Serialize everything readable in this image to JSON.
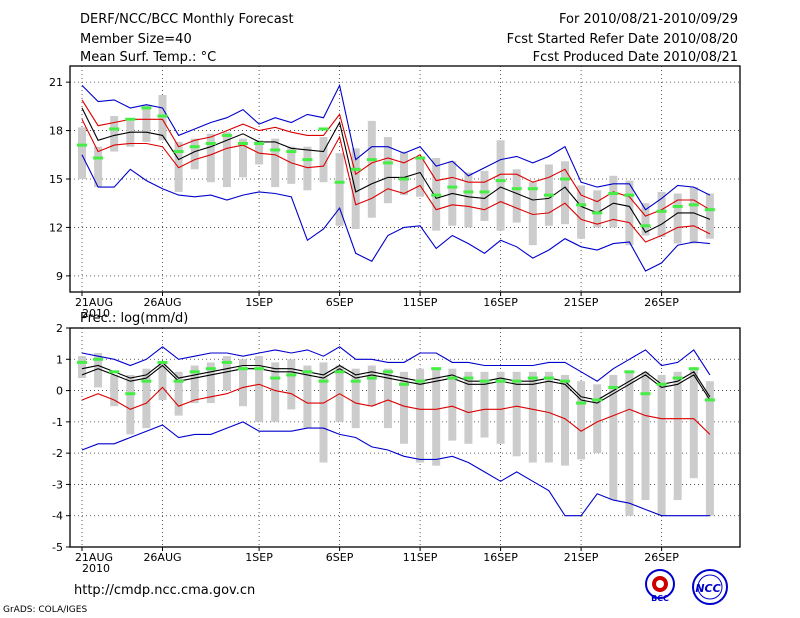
{
  "header": {
    "title": "DERF/NCC/BCC Monthly Forecast",
    "member_size": "Member Size=40",
    "variable": "Mean Surf. Temp.: °C",
    "period": "For 2010/08/21-2010/09/29",
    "started": "Fcst Started Refer Date 2010/08/20",
    "produced": "Fcst Produced Date 2010/08/21"
  },
  "footer": {
    "url": "http://cmdp.ncc.cma.gov.cn",
    "credit": "GrADS: COLA/IGES",
    "logo_bcc": "BCC",
    "logo_ncc": "NCC"
  },
  "x_tick_labels": [
    "21AUG",
    "26AUG",
    "1SEP",
    "6SEP",
    "11SEP",
    "16SEP",
    "21SEP",
    "26SEP"
  ],
  "x_year_label": "2010",
  "chart_data": [
    {
      "type": "line",
      "title": "Mean Surf. Temp.: °C",
      "ylim": [
        8,
        22
      ],
      "yticks": [
        9,
        12,
        15,
        18,
        21
      ],
      "x": [
        "21AUG",
        "22AUG",
        "23AUG",
        "24AUG",
        "25AUG",
        "26AUG",
        "27AUG",
        "28AUG",
        "29AUG",
        "30AUG",
        "31AUG",
        "1SEP",
        "2SEP",
        "3SEP",
        "4SEP",
        "5SEP",
        "6SEP",
        "7SEP",
        "8SEP",
        "9SEP",
        "10SEP",
        "11SEP",
        "12SEP",
        "13SEP",
        "14SEP",
        "15SEP",
        "16SEP",
        "17SEP",
        "18SEP",
        "19SEP",
        "20SEP",
        "21SEP",
        "22SEP",
        "23SEP",
        "24SEP",
        "25SEP",
        "26SEP",
        "27SEP",
        "28SEP",
        "29SEP"
      ],
      "series": [
        {
          "name": "max",
          "color": "#0000cc",
          "values": [
            20.8,
            19.8,
            19.9,
            19.4,
            19.6,
            19.4,
            17.7,
            18.1,
            18.5,
            18.8,
            19.3,
            18.4,
            18.8,
            18.5,
            19.0,
            18.8,
            20.8,
            16.2,
            17.0,
            17.0,
            16.6,
            17.0,
            15.8,
            16.1,
            15.2,
            15.7,
            16.2,
            16.4,
            16.0,
            16.4,
            17.0,
            14.8,
            14.5,
            14.7,
            14.7,
            13.1,
            13.8,
            14.6,
            14.5,
            14.0
          ]
        },
        {
          "name": "upper",
          "color": "#dd0000",
          "values": [
            19.9,
            18.3,
            18.5,
            18.7,
            18.7,
            18.7,
            17.0,
            17.4,
            17.6,
            18.0,
            18.4,
            18.0,
            18.2,
            17.9,
            17.7,
            17.7,
            19.0,
            15.3,
            16.0,
            16.3,
            16.0,
            16.5,
            14.9,
            15.1,
            14.8,
            14.8,
            15.3,
            15.3,
            14.8,
            15.1,
            15.6,
            14.0,
            13.6,
            14.2,
            13.9,
            12.7,
            13.1,
            13.7,
            13.7,
            13.1
          ]
        },
        {
          "name": "mean",
          "color": "#000000",
          "values": [
            19.4,
            17.4,
            17.7,
            17.9,
            17.9,
            17.7,
            16.2,
            16.7,
            17.0,
            17.4,
            17.8,
            17.3,
            17.3,
            16.9,
            16.8,
            16.7,
            18.5,
            14.2,
            14.7,
            15.1,
            15.1,
            15.4,
            13.8,
            14.1,
            13.9,
            13.8,
            14.5,
            14.1,
            13.7,
            13.8,
            14.5,
            13.3,
            12.9,
            13.5,
            13.3,
            11.7,
            12.2,
            12.9,
            12.9,
            12.5
          ]
        },
        {
          "name": "lower",
          "color": "#dd0000",
          "values": [
            18.7,
            16.7,
            17.1,
            17.2,
            17.2,
            17.0,
            15.7,
            16.2,
            16.5,
            16.9,
            17.1,
            16.6,
            16.5,
            16.0,
            15.7,
            15.8,
            17.6,
            13.4,
            13.8,
            14.4,
            14.1,
            14.6,
            13.1,
            13.4,
            13.3,
            13.1,
            13.6,
            13.2,
            12.8,
            12.9,
            13.5,
            12.5,
            12.2,
            12.5,
            12.3,
            11.1,
            11.5,
            12.0,
            12.1,
            11.6
          ]
        },
        {
          "name": "min",
          "color": "#0000cc",
          "values": [
            16.5,
            14.5,
            14.5,
            15.6,
            14.9,
            14.4,
            14.0,
            13.9,
            14.0,
            13.7,
            14.0,
            14.2,
            14.1,
            13.9,
            11.2,
            11.9,
            13.2,
            10.4,
            9.9,
            11.5,
            12.0,
            12.1,
            10.7,
            11.5,
            11.0,
            10.4,
            11.2,
            10.8,
            10.1,
            10.6,
            11.3,
            10.8,
            10.6,
            11.0,
            11.1,
            9.3,
            9.8,
            10.9,
            11.1,
            11.0
          ]
        },
        {
          "name": "observed",
          "color": "#44ee44",
          "values": [
            17.1,
            16.3,
            18.1,
            18.7,
            19.4,
            18.9,
            16.7,
            17.0,
            17.2,
            17.7,
            17.2,
            17.2,
            16.8,
            16.7,
            16.2,
            18.1,
            14.8,
            15.6,
            16.2,
            16.0,
            15.0,
            16.3,
            14.0,
            14.5,
            14.2,
            14.2,
            14.9,
            14.4,
            14.4,
            14.0,
            15.0,
            13.4,
            12.9,
            14.1,
            14.0,
            12.1,
            13.0,
            13.3,
            13.4,
            13.1
          ]
        },
        {
          "name": "spread_high",
          "color": "#cccccc",
          "values": [
            18.2,
            17.0,
            18.9,
            18.6,
            19.6,
            20.2,
            17.3,
            17.5,
            17.8,
            17.9,
            17.5,
            17.4,
            17.5,
            17.0,
            17.0,
            17.6,
            16.6,
            16.9,
            18.6,
            17.6,
            16.7,
            16.3,
            16.3,
            16.1,
            15.4,
            15.5,
            17.4,
            15.6,
            14.8,
            15.9,
            16.1,
            14.6,
            14.3,
            15.2,
            14.9,
            13.5,
            14.2,
            14.1,
            14.5,
            14.1
          ]
        },
        {
          "name": "spread_low",
          "color": "#cccccc",
          "values": [
            15.0,
            14.5,
            16.7,
            17.0,
            17.3,
            17.4,
            14.2,
            15.6,
            14.8,
            14.5,
            15.1,
            15.9,
            14.5,
            14.7,
            14.3,
            14.8,
            12.1,
            11.9,
            12.6,
            13.5,
            14.0,
            13.9,
            11.8,
            12.1,
            12.0,
            12.4,
            11.8,
            12.3,
            10.9,
            12.1,
            12.2,
            11.3,
            12.0,
            12.0,
            10.9,
            11.5,
            11.4,
            11.0,
            11.0,
            11.3
          ]
        }
      ]
    },
    {
      "type": "line",
      "title": "Prec.: log(mm/d)",
      "ylim": [
        -5,
        2
      ],
      "yticks": [
        -5,
        -4,
        -3,
        -2,
        -1,
        0,
        1,
        2
      ],
      "x": [
        "21AUG",
        "22AUG",
        "23AUG",
        "24AUG",
        "25AUG",
        "26AUG",
        "27AUG",
        "28AUG",
        "29AUG",
        "30AUG",
        "31AUG",
        "1SEP",
        "2SEP",
        "3SEP",
        "4SEP",
        "5SEP",
        "6SEP",
        "7SEP",
        "8SEP",
        "9SEP",
        "10SEP",
        "11SEP",
        "12SEP",
        "13SEP",
        "14SEP",
        "15SEP",
        "16SEP",
        "17SEP",
        "18SEP",
        "19SEP",
        "20SEP",
        "21SEP",
        "22SEP",
        "23SEP",
        "24SEP",
        "25SEP",
        "26SEP",
        "27SEP",
        "28SEP",
        "29SEP"
      ],
      "series": [
        {
          "name": "max",
          "color": "#0000cc",
          "values": [
            1.2,
            1.1,
            1.0,
            0.8,
            1.0,
            1.4,
            1.0,
            1.1,
            1.2,
            1.2,
            1.1,
            1.2,
            1.3,
            1.2,
            1.3,
            1.1,
            1.4,
            1.0,
            1.0,
            0.9,
            0.9,
            1.2,
            1.2,
            0.9,
            0.9,
            0.8,
            0.8,
            0.8,
            0.8,
            0.9,
            0.9,
            0.6,
            0.3,
            0.7,
            1.0,
            1.3,
            0.8,
            0.9,
            1.3,
            0.5
          ]
        },
        {
          "name": "upper",
          "color": "#000000",
          "values": [
            0.7,
            0.8,
            0.6,
            0.4,
            0.5,
            0.9,
            0.4,
            0.5,
            0.6,
            0.7,
            0.8,
            0.8,
            0.7,
            0.7,
            0.6,
            0.5,
            0.8,
            0.5,
            0.6,
            0.5,
            0.4,
            0.3,
            0.4,
            0.5,
            0.3,
            0.3,
            0.4,
            0.3,
            0.3,
            0.4,
            0.3,
            -0.2,
            -0.3,
            0.0,
            0.3,
            0.6,
            0.2,
            0.3,
            0.6,
            -0.2
          ]
        },
        {
          "name": "mean",
          "color": "#000000",
          "values": [
            0.5,
            0.7,
            0.5,
            0.3,
            0.4,
            0.8,
            0.3,
            0.4,
            0.5,
            0.6,
            0.7,
            0.7,
            0.6,
            0.6,
            0.5,
            0.4,
            0.7,
            0.4,
            0.5,
            0.4,
            0.3,
            0.2,
            0.3,
            0.4,
            0.2,
            0.2,
            0.3,
            0.2,
            0.2,
            0.3,
            0.2,
            -0.3,
            -0.4,
            -0.1,
            0.2,
            0.5,
            0.1,
            0.2,
            0.5,
            -0.3
          ]
        },
        {
          "name": "lower",
          "color": "#dd0000",
          "values": [
            -0.3,
            -0.1,
            -0.3,
            -0.6,
            -0.4,
            0.1,
            -0.5,
            -0.3,
            -0.2,
            -0.1,
            0.1,
            0.2,
            0.0,
            -0.1,
            -0.4,
            -0.4,
            -0.1,
            -0.4,
            -0.5,
            -0.3,
            -0.5,
            -0.6,
            -0.6,
            -0.5,
            -0.7,
            -0.6,
            -0.6,
            -0.5,
            -0.6,
            -0.7,
            -0.9,
            -1.3,
            -1.0,
            -0.8,
            -0.6,
            -0.8,
            -0.9,
            -0.9,
            -0.9,
            -1.4
          ]
        },
        {
          "name": "min",
          "color": "#0000cc",
          "values": [
            -1.9,
            -1.7,
            -1.7,
            -1.5,
            -1.3,
            -1.1,
            -1.5,
            -1.4,
            -1.4,
            -1.2,
            -1.0,
            -1.3,
            -1.3,
            -1.3,
            -1.2,
            -1.2,
            -1.4,
            -1.5,
            -1.8,
            -1.9,
            -2.1,
            -2.2,
            -2.2,
            -2.1,
            -2.3,
            -2.6,
            -2.9,
            -2.6,
            -2.9,
            -3.2,
            -4.0,
            -4.0,
            -3.3,
            -3.5,
            -3.6,
            -3.8,
            -4.0,
            -4.0,
            -4.0,
            -4.0
          ]
        },
        {
          "name": "observed",
          "color": "#44ee44",
          "values": [
            0.9,
            1.0,
            0.6,
            -0.1,
            0.3,
            0.9,
            0.3,
            0.6,
            0.7,
            0.9,
            0.7,
            0.7,
            0.4,
            0.5,
            0.6,
            0.3,
            0.6,
            0.3,
            0.4,
            0.6,
            0.2,
            0.3,
            0.7,
            0.4,
            0.4,
            0.3,
            0.3,
            0.3,
            0.4,
            0.4,
            0.3,
            -0.4,
            -0.3,
            0.1,
            0.6,
            -0.1,
            0.2,
            0.4,
            0.7,
            -0.3
          ]
        },
        {
          "name": "spread_high",
          "color": "#cccccc",
          "values": [
            1.1,
            1.2,
            0.5,
            0.5,
            0.7,
            0.9,
            0.6,
            0.8,
            0.9,
            1.1,
            1.0,
            1.1,
            0.9,
            1.0,
            0.8,
            0.9,
            0.8,
            0.7,
            0.8,
            0.7,
            0.6,
            0.7,
            0.7,
            0.7,
            0.6,
            0.6,
            0.6,
            0.6,
            0.6,
            0.6,
            0.5,
            0.3,
            0.2,
            0.5,
            0.6,
            0.6,
            0.5,
            0.6,
            0.7,
            0.3
          ]
        },
        {
          "name": "spread_low",
          "color": "#cccccc",
          "values": [
            0.4,
            0.1,
            -0.5,
            -1.4,
            -1.2,
            -0.3,
            -0.8,
            -0.4,
            -0.4,
            0.0,
            -0.5,
            -1.0,
            -1.0,
            -0.6,
            -1.2,
            -2.3,
            -1.0,
            -1.2,
            -0.5,
            -1.2,
            -1.7,
            -2.3,
            -2.4,
            -1.6,
            -1.7,
            -1.5,
            -1.7,
            -2.1,
            -2.3,
            -2.3,
            -2.4,
            -2.2,
            -2.0,
            -3.5,
            -4.0,
            -3.5,
            -4.0,
            -3.5,
            -2.8,
            -4.0
          ]
        }
      ]
    }
  ]
}
